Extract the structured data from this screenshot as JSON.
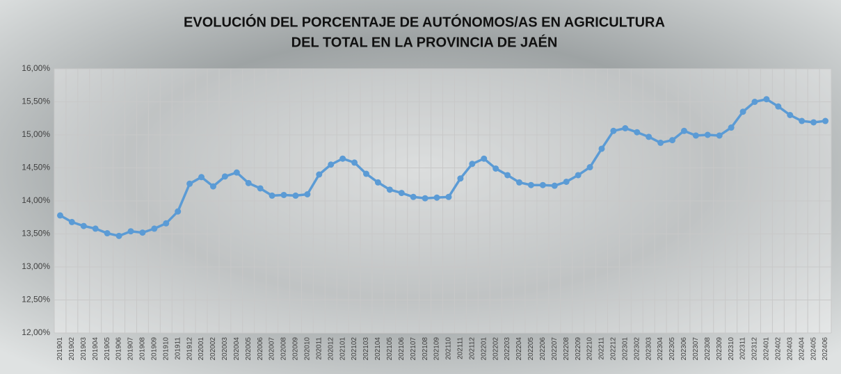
{
  "chart_data": {
    "type": "line",
    "title": [
      "EVOLUCIÓN DEL PORCENTAJE DE AUTÓNOMOS/AS EN AGRICULTURA",
      "DEL TOTAL EN LA PROVINCIA DE JAÉN"
    ],
    "categories": [
      "201901",
      "201902",
      "201903",
      "201904",
      "201905",
      "201906",
      "201907",
      "201908",
      "201909",
      "201910",
      "201911",
      "201912",
      "202001",
      "202002",
      "202003",
      "202004",
      "202005",
      "202006",
      "202007",
      "202008",
      "202009",
      "202010",
      "202011",
      "202012",
      "202101",
      "202102",
      "202103",
      "202104",
      "202105",
      "202106",
      "202107",
      "202108",
      "202109",
      "202110",
      "202111",
      "202112",
      "202201",
      "202202",
      "202203",
      "202204",
      "202205",
      "202206",
      "202207",
      "202208",
      "202209",
      "202210",
      "202211",
      "202212",
      "202301",
      "202302",
      "202303",
      "202304",
      "202305",
      "202306",
      "202307",
      "202308",
      "202309",
      "202310",
      "202311",
      "202312",
      "202401",
      "202402",
      "202403",
      "202404",
      "202405",
      "202406"
    ],
    "series": [
      {
        "color": "#5b9bd5",
        "values": [
          13.78,
          13.68,
          13.62,
          13.58,
          13.51,
          13.47,
          13.54,
          13.52,
          13.58,
          13.66,
          13.84,
          14.26,
          14.36,
          14.22,
          14.37,
          14.43,
          14.27,
          14.19,
          14.08,
          14.09,
          14.08,
          14.1,
          14.4,
          14.55,
          14.64,
          14.58,
          14.41,
          14.28,
          14.17,
          14.12,
          14.06,
          14.04,
          14.05,
          14.06,
          14.34,
          14.56,
          14.64,
          14.49,
          14.39,
          14.28,
          14.24,
          14.24,
          14.23,
          14.29,
          14.39,
          14.51,
          14.79,
          15.06,
          15.1,
          15.04,
          14.97,
          14.88,
          14.92,
          15.06,
          14.99,
          15.0,
          14.99,
          15.11,
          15.35,
          15.5,
          15.54,
          15.43,
          15.3,
          15.21,
          15.19,
          15.21
        ]
      }
    ],
    "ylim": [
      12,
      16
    ],
    "yticks": [
      {
        "value": 12,
        "label": "12,00%"
      },
      {
        "value": 12.5,
        "label": "12,50%"
      },
      {
        "value": 13,
        "label": "13,00%"
      },
      {
        "value": 13.5,
        "label": "13,50%"
      },
      {
        "value": 14,
        "label": "14,00%"
      },
      {
        "value": 14.5,
        "label": "14,50%"
      },
      {
        "value": 15,
        "label": "15,00%"
      },
      {
        "value": 15.5,
        "label": "15,50%"
      },
      {
        "value": 16,
        "label": "16,00%"
      }
    ],
    "grid": true
  }
}
